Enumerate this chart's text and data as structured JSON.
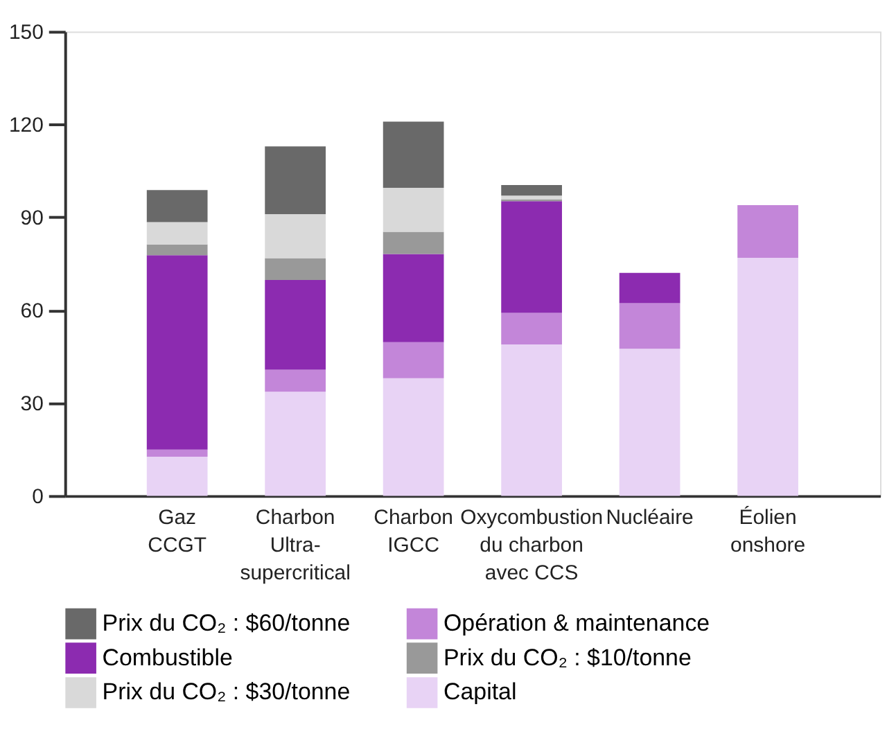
{
  "chart_data": {
    "type": "bar",
    "stacked": true,
    "categories": [
      "Gaz\nCCGT",
      "Charbon\nUltra-\nsupercritical",
      "Charbon\nIGCC",
      "Oxycombustion\ndu charbon\navec CCS",
      "Nucléaire",
      "Éolien\nonshore"
    ],
    "series": [
      {
        "name": "Capital",
        "color": "#e8d3f5",
        "values": [
          12.6,
          33.6,
          38.0,
          48.9,
          47.5,
          76.9
        ]
      },
      {
        "name": "Opération & maintenance",
        "color": "#c386d9",
        "values": [
          2.3,
          7.1,
          11.6,
          10.2,
          14.7,
          17.0
        ]
      },
      {
        "name": "Combustible",
        "color": "#8c2bb0",
        "values": [
          62.8,
          29.0,
          28.5,
          36.1,
          9.8,
          null
        ]
      },
      {
        "name": "Prix du CO₂ : $10/tonne",
        "color": "#999999",
        "values": [
          3.5,
          7.1,
          7.2,
          0.6,
          null,
          null
        ]
      },
      {
        "name": "Prix du CO₂ : $30/tonne",
        "color": "#d9d9d9",
        "values": [
          7.2,
          14.2,
          14.2,
          1.2,
          null,
          null
        ]
      },
      {
        "name": "Prix du CO₂ : $60/tonne",
        "color": "#696969",
        "values": [
          10.4,
          21.9,
          21.4,
          3.4,
          null,
          null
        ]
      }
    ],
    "ylim": [
      0,
      150
    ],
    "yticks": [
      0,
      30,
      60,
      90,
      120,
      150
    ],
    "grid": false,
    "legend": "bottom"
  }
}
